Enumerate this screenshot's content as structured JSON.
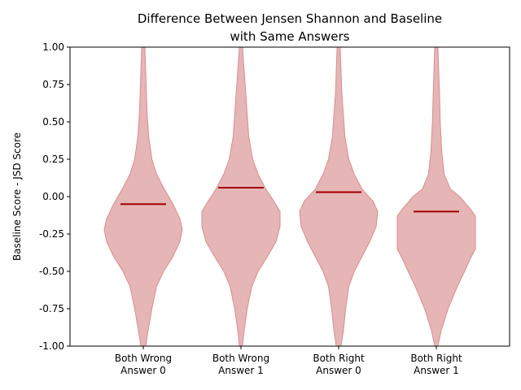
{
  "chart_data": {
    "type": "violin",
    "title": [
      "Difference Between Jensen Shannon and Baseline",
      "with Same Answers"
    ],
    "xlabel": "",
    "ylabel": "Baseline Score - JSD Score",
    "ylim": [
      -1.0,
      1.0
    ],
    "yticks": [
      "-1.00",
      "-0.75",
      "-0.50",
      "-0.25",
      "0.00",
      "0.25",
      "0.50",
      "0.75",
      "1.00"
    ],
    "categories": [
      [
        "Both Wrong",
        "Answer 0"
      ],
      [
        "Both Wrong",
        "Answer 1"
      ],
      [
        "Both Right",
        "Answer 0"
      ],
      [
        "Both Right",
        "Answer 1"
      ]
    ],
    "medians": [
      -0.05,
      0.06,
      0.03,
      -0.1
    ],
    "violin_color": "#d98e8e",
    "median_color": "#a00000",
    "grid": false,
    "violins": [
      {
        "y": [
          -1.0,
          -0.9,
          -0.75,
          -0.6,
          -0.5,
          -0.4,
          -0.3,
          -0.22,
          -0.15,
          -0.05,
          0.05,
          0.15,
          0.25,
          0.4,
          0.55,
          0.7,
          0.85,
          1.0
        ],
        "width": [
          0.03,
          0.06,
          0.11,
          0.17,
          0.26,
          0.38,
          0.47,
          0.5,
          0.47,
          0.38,
          0.27,
          0.17,
          0.11,
          0.07,
          0.05,
          0.04,
          0.03,
          0.02
        ]
      },
      {
        "y": [
          -1.0,
          -0.9,
          -0.75,
          -0.6,
          -0.5,
          -0.4,
          -0.3,
          -0.2,
          -0.1,
          -0.03,
          0.05,
          0.15,
          0.25,
          0.4,
          0.55,
          0.7,
          0.85,
          1.0
        ],
        "width": [
          0.02,
          0.04,
          0.08,
          0.14,
          0.22,
          0.34,
          0.45,
          0.5,
          0.5,
          0.42,
          0.32,
          0.22,
          0.15,
          0.1,
          0.08,
          0.06,
          0.04,
          0.02
        ]
      },
      {
        "y": [
          -1.0,
          -0.9,
          -0.75,
          -0.6,
          -0.5,
          -0.4,
          -0.3,
          -0.2,
          -0.1,
          -0.03,
          0.05,
          0.15,
          0.25,
          0.4,
          0.55,
          0.7,
          0.85,
          1.0
        ],
        "width": [
          0.03,
          0.06,
          0.09,
          0.13,
          0.2,
          0.3,
          0.4,
          0.48,
          0.5,
          0.44,
          0.3,
          0.2,
          0.13,
          0.08,
          0.06,
          0.04,
          0.03,
          0.02
        ]
      },
      {
        "y": [
          -1.0,
          -0.9,
          -0.75,
          -0.6,
          -0.5,
          -0.4,
          -0.35,
          -0.2,
          -0.13,
          -0.08,
          0.0,
          0.05,
          0.15,
          0.3,
          0.5,
          0.7,
          0.85,
          1.0
        ],
        "width": [
          0.02,
          0.06,
          0.15,
          0.27,
          0.36,
          0.45,
          0.5,
          0.5,
          0.5,
          0.43,
          0.3,
          0.18,
          0.1,
          0.07,
          0.05,
          0.04,
          0.03,
          0.02
        ]
      }
    ]
  }
}
